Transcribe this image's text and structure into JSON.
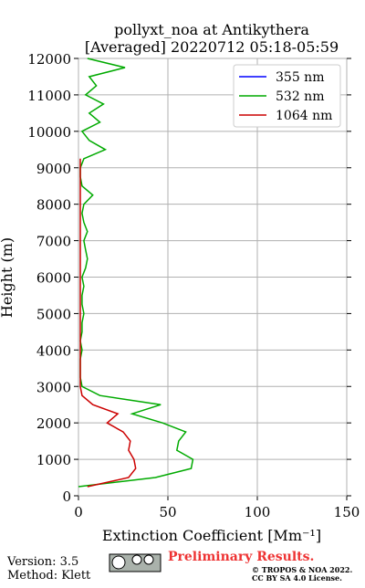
{
  "chart_data": {
    "type": "line",
    "title": "pollyxt_noa at Antikythera",
    "subtitle": "[Averaged] 20220712 05:18-05:59",
    "x_label": "Extinction Coefficient [Mm⁻¹]",
    "y_label": "Height (m)",
    "y": [
      250,
      500,
      750,
      1000,
      1250,
      1500,
      1750,
      2000,
      2250,
      2500,
      2750,
      3000,
      3250,
      3500,
      3750,
      4000,
      4250,
      4500,
      4750,
      5000,
      5250,
      5500,
      5750,
      6000,
      6250,
      6500,
      6750,
      7000,
      7250,
      7500,
      7750,
      8000,
      8250,
      8500,
      8750,
      9000,
      9250,
      9500,
      9750,
      10000,
      10250,
      10500,
      10750,
      11000,
      11250,
      11500,
      11750,
      12000
    ],
    "series": [
      {
        "name": "355 nm",
        "color": "#0000ff",
        "values": [
          null,
          null,
          null,
          null,
          null,
          null,
          null,
          null,
          null,
          null,
          null,
          null,
          null,
          null,
          null,
          null,
          null,
          null,
          null,
          null,
          null,
          null,
          null,
          null,
          null,
          null,
          null,
          null,
          null,
          null,
          null,
          null,
          null,
          null,
          null,
          null,
          null,
          null,
          null,
          null,
          null,
          null,
          null,
          null,
          null,
          null,
          null,
          null
        ]
      },
      {
        "name": "532 nm",
        "color": "#00aa00",
        "values": [
          0,
          43,
          63,
          64,
          55,
          56,
          60,
          47,
          30,
          46,
          12,
          2,
          1,
          1,
          1,
          2,
          1,
          2,
          2,
          3,
          2,
          2,
          3,
          2,
          4,
          5,
          4,
          3,
          5,
          3,
          2,
          3,
          8,
          2,
          1,
          1,
          3,
          15,
          6,
          2,
          12,
          6,
          14,
          4,
          10,
          6,
          26,
          5
        ]
      },
      {
        "name": "1064 nm",
        "color": "#cc0000",
        "values": [
          5,
          28,
          32,
          31,
          28,
          29,
          25,
          16,
          22,
          8,
          2,
          1,
          1,
          1,
          1,
          1,
          1,
          1,
          1,
          1,
          1,
          1,
          1,
          1,
          1,
          1,
          1,
          1,
          1,
          1,
          1,
          1,
          1,
          1,
          1,
          1,
          1,
          null,
          null,
          null,
          null,
          null,
          null,
          null,
          null,
          null,
          null,
          null
        ]
      }
    ],
    "xlim": [
      0,
      150
    ],
    "ylim": [
      0,
      12000
    ],
    "xticks": [
      0,
      50,
      100,
      150
    ],
    "yticks": [
      0,
      1000,
      2000,
      3000,
      4000,
      5000,
      6000,
      7000,
      8000,
      9000,
      10000,
      11000,
      12000
    ],
    "grid": true,
    "legend": "upper right",
    "footer": {
      "version": "Version: 3.5",
      "method": "Method: Klett",
      "preliminary": "Preliminary Results.",
      "license_1": "© TROPOS & NOA 2022.",
      "license_2": "CC BY SA 4.0 License."
    }
  }
}
